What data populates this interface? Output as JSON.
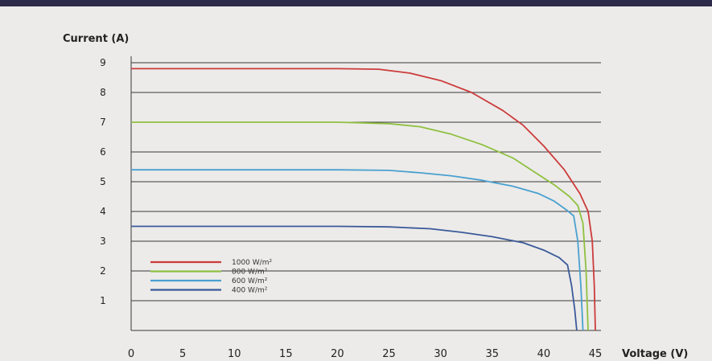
{
  "chart_data": {
    "type": "line",
    "title": "",
    "ylabel": "Current (A)",
    "xlabel": "Voltage (V)",
    "xlim": [
      0,
      45
    ],
    "ylim": [
      0,
      9
    ],
    "x_ticks": [
      "0",
      "5",
      "10",
      "15",
      "20",
      "25",
      "30",
      "35",
      "40",
      "45"
    ],
    "y_ticks": [
      "1",
      "2",
      "3",
      "4",
      "5",
      "6",
      "7",
      "8",
      "9"
    ],
    "grid": "horizontal",
    "legend_position": "bottom-left",
    "series": [
      {
        "name": "1000 W/m²",
        "color": "#cc3b3b",
        "points": [
          [
            0,
            8.8
          ],
          [
            10,
            8.8
          ],
          [
            20,
            8.8
          ],
          [
            24,
            8.78
          ],
          [
            27,
            8.65
          ],
          [
            30,
            8.4
          ],
          [
            33,
            8.0
          ],
          [
            36,
            7.4
          ],
          [
            38,
            6.9
          ],
          [
            40,
            6.2
          ],
          [
            42,
            5.4
          ],
          [
            43.5,
            4.6
          ],
          [
            44.3,
            4.0
          ],
          [
            44.7,
            3.0
          ],
          [
            44.9,
            1.5
          ],
          [
            45,
            0
          ]
        ]
      },
      {
        "name": "800 W/m²",
        "color": "#8fc040",
        "points": [
          [
            0,
            7.0
          ],
          [
            10,
            7.0
          ],
          [
            20,
            7.0
          ],
          [
            25,
            6.95
          ],
          [
            28,
            6.85
          ],
          [
            31,
            6.6
          ],
          [
            34,
            6.25
          ],
          [
            37,
            5.8
          ],
          [
            39,
            5.35
          ],
          [
            41,
            4.9
          ],
          [
            42.5,
            4.5
          ],
          [
            43.3,
            4.2
          ],
          [
            43.8,
            3.6
          ],
          [
            44.1,
            2.0
          ],
          [
            44.3,
            0
          ]
        ]
      },
      {
        "name": "600 W/m²",
        "color": "#4aa0d0",
        "points": [
          [
            0,
            5.4
          ],
          [
            10,
            5.4
          ],
          [
            20,
            5.4
          ],
          [
            25,
            5.38
          ],
          [
            28,
            5.3
          ],
          [
            31,
            5.2
          ],
          [
            34,
            5.05
          ],
          [
            37,
            4.85
          ],
          [
            39.5,
            4.6
          ],
          [
            41,
            4.35
          ],
          [
            42.2,
            4.05
          ],
          [
            42.9,
            3.85
          ],
          [
            43.3,
            3.0
          ],
          [
            43.6,
            1.5
          ],
          [
            43.8,
            0
          ]
        ]
      },
      {
        "name": "400 W/m²",
        "color": "#3b5a9a",
        "points": [
          [
            0,
            3.5
          ],
          [
            10,
            3.5
          ],
          [
            20,
            3.5
          ],
          [
            25,
            3.48
          ],
          [
            29,
            3.42
          ],
          [
            32,
            3.3
          ],
          [
            35,
            3.15
          ],
          [
            38,
            2.95
          ],
          [
            40,
            2.7
          ],
          [
            41.5,
            2.45
          ],
          [
            42.3,
            2.2
          ],
          [
            42.7,
            1.5
          ],
          [
            43.0,
            0.7
          ],
          [
            43.2,
            0
          ]
        ]
      }
    ]
  }
}
